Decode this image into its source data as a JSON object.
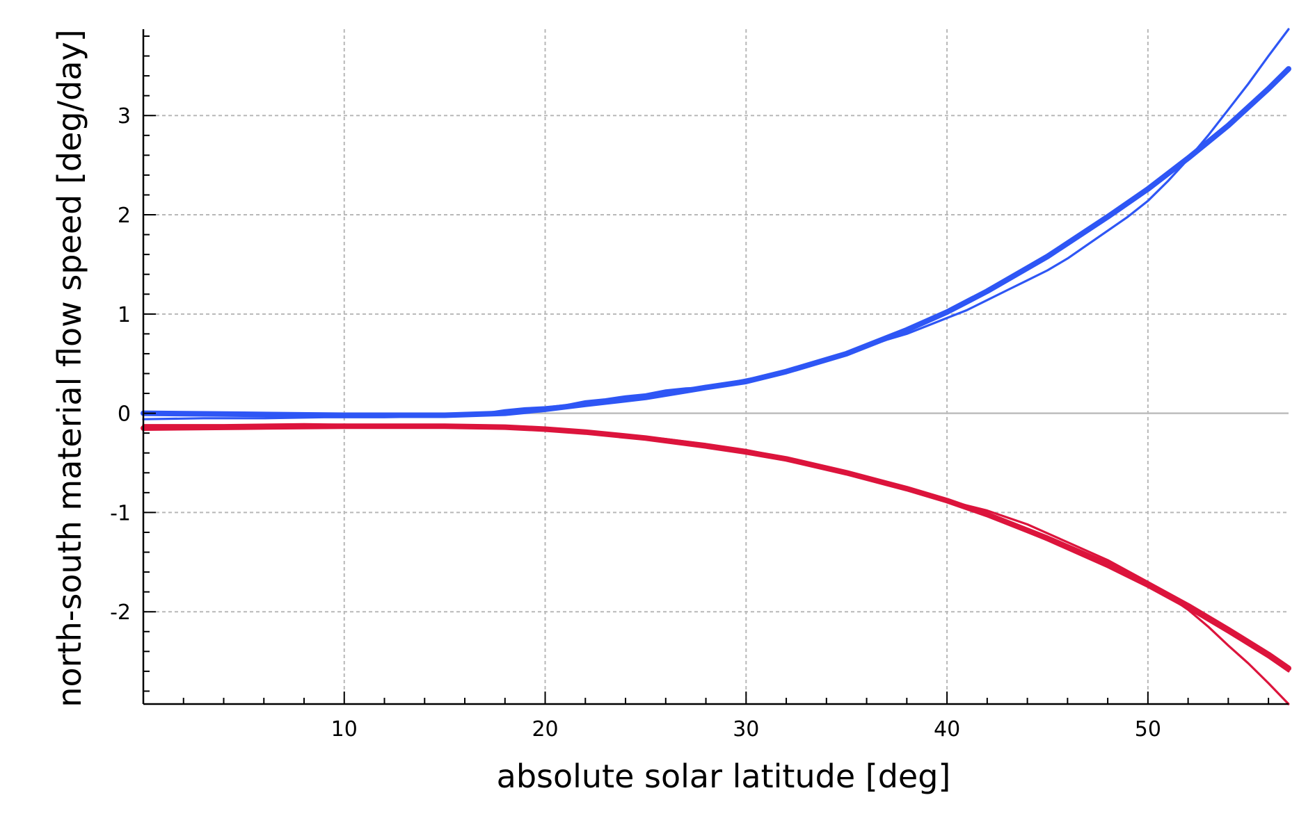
{
  "chart_data": {
    "type": "line",
    "title": "",
    "xlabel": "absolute solar latitude [deg]",
    "ylabel": "north-south material flow speed [deg/day]",
    "xlim": [
      0,
      57
    ],
    "ylim": [
      -2.93,
      3.87
    ],
    "x_ticks": [
      10,
      20,
      30,
      40,
      50
    ],
    "y_ticks": [
      -2,
      -1,
      0,
      1,
      2,
      3
    ],
    "x_tick_labels": [
      "10",
      "20",
      "30",
      "40",
      "50"
    ],
    "y_tick_labels": [
      "-2",
      "-1",
      "0",
      "1",
      "2",
      "3"
    ],
    "x_minor_step": 2,
    "y_minor_step": 0.2,
    "grid": true,
    "zero_line": true,
    "legend": "none",
    "series": [
      {
        "color": "#2e56f5",
        "style": "thick",
        "x": [
          0,
          5,
          10,
          15,
          18,
          20,
          22,
          25,
          28,
          30,
          32,
          35,
          38,
          40,
          42,
          45,
          48,
          50,
          52,
          54,
          56,
          57
        ],
        "y": [
          0.0,
          -0.01,
          -0.02,
          -0.02,
          -0.0,
          0.04,
          0.09,
          0.16,
          0.26,
          0.32,
          0.42,
          0.6,
          0.84,
          1.02,
          1.23,
          1.58,
          1.98,
          2.26,
          2.57,
          2.9,
          3.27,
          3.47
        ]
      },
      {
        "color": "#2e56f5",
        "style": "thin",
        "x": [
          0,
          3,
          6,
          9,
          12,
          15,
          16,
          17,
          18,
          19,
          20,
          21,
          22,
          23,
          24,
          25,
          26,
          27,
          28,
          29,
          30,
          31,
          32,
          33,
          34,
          35,
          36,
          37,
          38,
          39,
          40,
          41,
          42,
          43,
          44,
          45,
          46,
          47,
          48,
          49,
          50,
          51,
          52,
          53,
          54,
          55,
          56,
          57
        ],
        "y": [
          -0.06,
          -0.05,
          -0.05,
          -0.04,
          -0.04,
          -0.03,
          -0.01,
          0.0,
          0.03,
          0.05,
          0.06,
          0.08,
          0.12,
          0.14,
          0.17,
          0.19,
          0.23,
          0.25,
          0.26,
          0.3,
          0.34,
          0.38,
          0.43,
          0.48,
          0.53,
          0.6,
          0.67,
          0.74,
          0.8,
          0.88,
          0.96,
          1.04,
          1.14,
          1.24,
          1.34,
          1.44,
          1.56,
          1.7,
          1.84,
          1.98,
          2.14,
          2.34,
          2.56,
          2.8,
          3.06,
          3.32,
          3.6,
          3.87
        ]
      },
      {
        "color": "#dc143c",
        "style": "thick",
        "x": [
          0,
          5,
          10,
          15,
          18,
          20,
          22,
          25,
          28,
          30,
          32,
          35,
          38,
          40,
          42,
          45,
          48,
          50,
          52,
          54,
          56,
          57
        ],
        "y": [
          -0.15,
          -0.14,
          -0.13,
          -0.13,
          -0.14,
          -0.16,
          -0.19,
          -0.25,
          -0.33,
          -0.39,
          -0.46,
          -0.6,
          -0.76,
          -0.88,
          -1.02,
          -1.26,
          -1.52,
          -1.72,
          -1.94,
          -2.18,
          -2.43,
          -2.57
        ]
      },
      {
        "color": "#dc143c",
        "style": "thin",
        "x": [
          0,
          4,
          8,
          12,
          16,
          18,
          20,
          22,
          24,
          26,
          28,
          30,
          32,
          34,
          36,
          38,
          40,
          42,
          44,
          46,
          48,
          50,
          52,
          53,
          54,
          55,
          56,
          57
        ],
        "y": [
          -0.12,
          -0.12,
          -0.11,
          -0.12,
          -0.13,
          -0.15,
          -0.16,
          -0.19,
          -0.22,
          -0.26,
          -0.31,
          -0.37,
          -0.45,
          -0.55,
          -0.65,
          -0.76,
          -0.88,
          -0.98,
          -1.12,
          -1.3,
          -1.48,
          -1.7,
          -1.98,
          -2.15,
          -2.34,
          -2.52,
          -2.72,
          -2.93
        ]
      },
      {
        "color": "#dc143c",
        "style": "thin",
        "x": [
          0,
          5,
          10,
          15,
          18,
          20,
          22,
          25,
          28,
          30,
          32,
          35,
          38,
          40,
          42,
          45,
          48,
          50,
          52,
          54,
          56,
          57
        ],
        "y": [
          -0.14,
          -0.13,
          -0.12,
          -0.13,
          -0.14,
          -0.17,
          -0.2,
          -0.26,
          -0.34,
          -0.4,
          -0.47,
          -0.61,
          -0.77,
          -0.89,
          -1.03,
          -1.28,
          -1.55,
          -1.75,
          -1.97,
          -2.21,
          -2.46,
          -2.6
        ]
      }
    ]
  }
}
